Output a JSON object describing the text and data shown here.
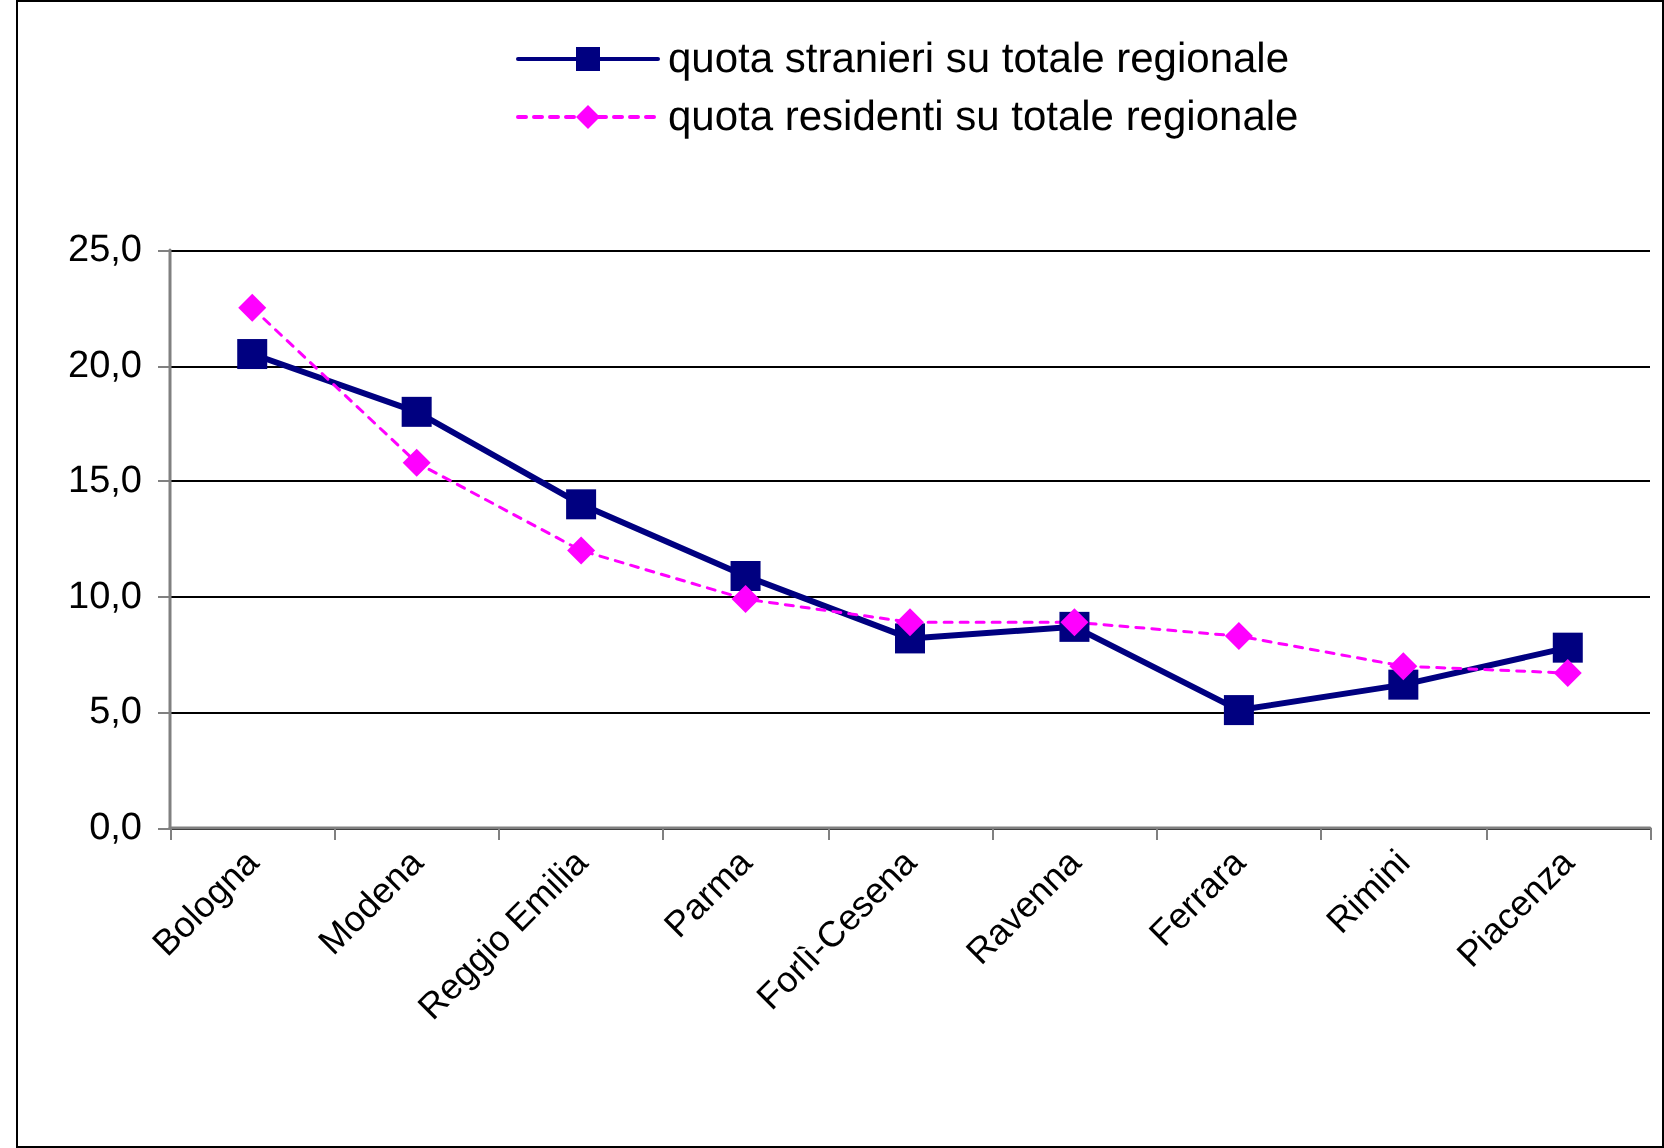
{
  "chart_data": {
    "type": "line",
    "categories": [
      "Bologna",
      "Modena",
      "Reggio Emilia",
      "Parma",
      "Forlì-Cesena",
      "Ravenna",
      "Ferrara",
      "Rimini",
      "Piacenza"
    ],
    "series": [
      {
        "name": "quota stranieri su totale regionale",
        "color": "#000080",
        "marker": "square",
        "line_style": "solid",
        "values": [
          20.5,
          18.0,
          14.0,
          10.9,
          8.2,
          8.7,
          5.1,
          6.2,
          7.8
        ]
      },
      {
        "name": "quota residenti su totale regionale",
        "color": "#ff00ff",
        "marker": "diamond",
        "line_style": "dashed",
        "values": [
          22.5,
          15.8,
          12.0,
          9.9,
          8.9,
          8.9,
          8.3,
          7.0,
          6.7
        ]
      }
    ],
    "ylim": [
      0,
      25
    ],
    "yticks": [
      {
        "value": 0,
        "label": "0,0"
      },
      {
        "value": 5,
        "label": "5,0"
      },
      {
        "value": 10,
        "label": "10,0"
      },
      {
        "value": 15,
        "label": "15,0"
      },
      {
        "value": 20,
        "label": "20,0"
      },
      {
        "value": 25,
        "label": "25,0"
      }
    ],
    "grid": "y",
    "legend": "top"
  }
}
